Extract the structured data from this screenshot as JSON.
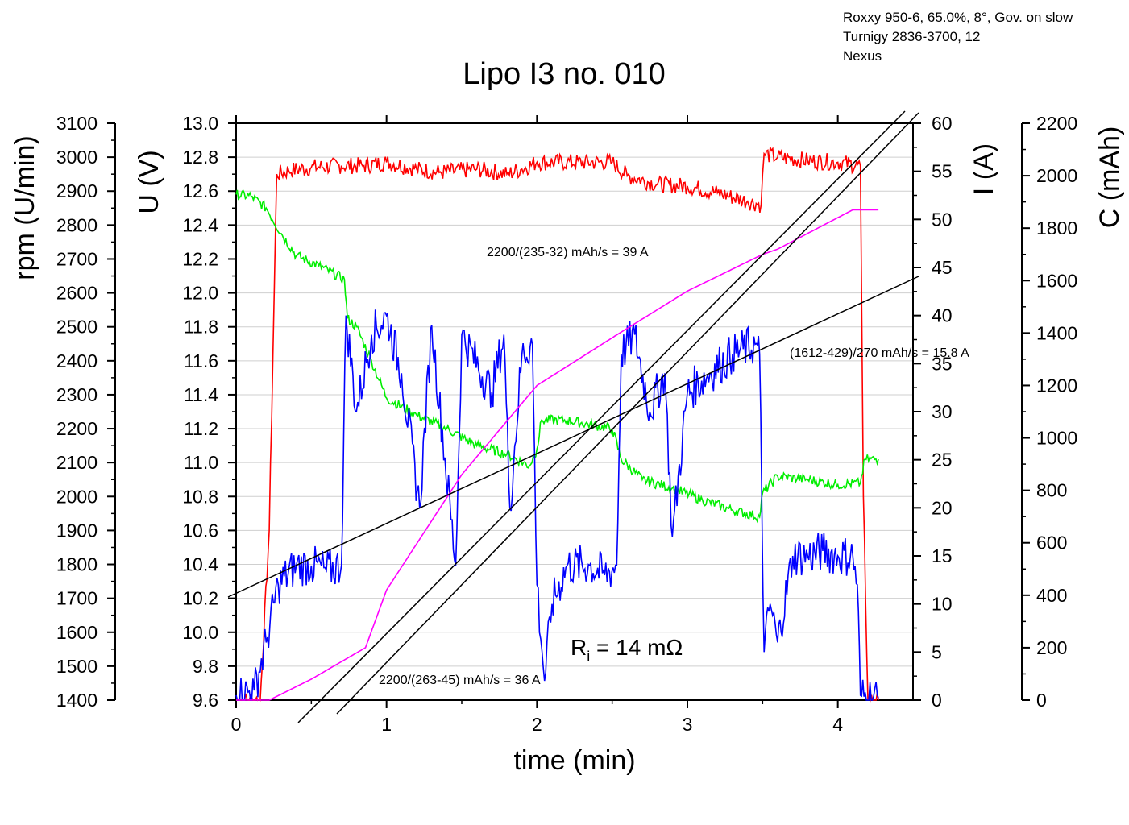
{
  "meta_lines": [
    "Roxxy 950-6, 65.0%, 8°, Gov. on slow",
    "Turnigy 2836-3700, 12",
    "Nexus"
  ],
  "chart_data": {
    "type": "line",
    "title": "Lipo I3 no. 010",
    "xlabel": "time (min)",
    "xlim": [
      0,
      4.5
    ],
    "x_ticks": [
      "0",
      "1",
      "2",
      "3",
      "4"
    ],
    "axes": {
      "rpm": {
        "label": "rpm (U/min)",
        "min": 1400,
        "max": 3100,
        "step": 100,
        "ticks": [
          "1400",
          "1500",
          "1600",
          "1700",
          "1800",
          "1900",
          "2000",
          "2100",
          "2200",
          "2300",
          "2400",
          "2500",
          "2600",
          "2700",
          "2800",
          "2900",
          "3000",
          "3100"
        ]
      },
      "voltage": {
        "label": "U (V)",
        "min": 9.6,
        "max": 13.0,
        "step": 0.2,
        "ticks": [
          "9.6",
          "9.8",
          "10.0",
          "10.2",
          "10.4",
          "10.6",
          "10.8",
          "11.0",
          "11.2",
          "11.4",
          "11.6",
          "11.8",
          "12.0",
          "12.2",
          "12.4",
          "12.6",
          "12.8",
          "13.0"
        ]
      },
      "current": {
        "label": "I (A)",
        "min": 0,
        "max": 60,
        "step": 5,
        "ticks": [
          "0",
          "5",
          "10",
          "15",
          "20",
          "25",
          "30",
          "35",
          "40",
          "45",
          "50",
          "55",
          "60"
        ]
      },
      "capacity": {
        "label": "C (mAh)",
        "min": 0,
        "max": 2200,
        "step": 200,
        "ticks": [
          "0",
          "200",
          "400",
          "600",
          "800",
          "1000",
          "1200",
          "1400",
          "1600",
          "1800",
          "2000",
          "2200"
        ]
      }
    },
    "series": [
      {
        "name": "rpm",
        "axis": "rpm",
        "color": "#ff0000",
        "points": [
          [
            0,
            1400
          ],
          [
            0.16,
            1400
          ],
          [
            0.22,
            1900
          ],
          [
            0.27,
            2950
          ],
          [
            0.35,
            2960
          ],
          [
            0.5,
            2970
          ],
          [
            0.7,
            2975
          ],
          [
            0.85,
            2975
          ],
          [
            1.0,
            2985
          ],
          [
            1.2,
            2965
          ],
          [
            1.35,
            2955
          ],
          [
            1.6,
            2965
          ],
          [
            1.8,
            2950
          ],
          [
            1.9,
            2965
          ],
          [
            2.0,
            2985
          ],
          [
            2.2,
            2985
          ],
          [
            2.5,
            2985
          ],
          [
            2.6,
            2945
          ],
          [
            2.8,
            2920
          ],
          [
            3.0,
            2915
          ],
          [
            3.2,
            2895
          ],
          [
            3.4,
            2870
          ],
          [
            3.49,
            2860
          ],
          [
            3.51,
            3010
          ],
          [
            3.6,
            3000
          ],
          [
            3.8,
            2990
          ],
          [
            4.0,
            2985
          ],
          [
            4.15,
            2975
          ],
          [
            4.17,
            2000
          ],
          [
            4.2,
            1400
          ],
          [
            4.27,
            1400
          ]
        ]
      },
      {
        "name": "voltage",
        "axis": "voltage",
        "color": "#00ee00",
        "points": [
          [
            0,
            12.58
          ],
          [
            0.1,
            12.57
          ],
          [
            0.2,
            12.5
          ],
          [
            0.3,
            12.35
          ],
          [
            0.4,
            12.22
          ],
          [
            0.55,
            12.16
          ],
          [
            0.72,
            12.08
          ],
          [
            0.74,
            11.85
          ],
          [
            0.8,
            11.8
          ],
          [
            0.9,
            11.6
          ],
          [
            1.0,
            11.38
          ],
          [
            1.2,
            11.28
          ],
          [
            1.4,
            11.2
          ],
          [
            1.6,
            11.1
          ],
          [
            1.8,
            11.05
          ],
          [
            1.95,
            10.98
          ],
          [
            2.0,
            11.08
          ],
          [
            2.03,
            11.25
          ],
          [
            2.2,
            11.25
          ],
          [
            2.5,
            11.2
          ],
          [
            2.56,
            11.02
          ],
          [
            2.7,
            10.9
          ],
          [
            2.9,
            10.85
          ],
          [
            3.1,
            10.78
          ],
          [
            3.3,
            10.72
          ],
          [
            3.48,
            10.68
          ],
          [
            3.5,
            10.82
          ],
          [
            3.6,
            10.92
          ],
          [
            3.8,
            10.9
          ],
          [
            4.0,
            10.87
          ],
          [
            4.15,
            10.88
          ],
          [
            4.18,
            11.02
          ],
          [
            4.27,
            11.02
          ]
        ]
      },
      {
        "name": "current",
        "axis": "current",
        "color": "#0000ff",
        "points": [
          [
            0,
            0.5
          ],
          [
            0.12,
            1
          ],
          [
            0.2,
            6
          ],
          [
            0.28,
            12
          ],
          [
            0.4,
            14
          ],
          [
            0.5,
            14
          ],
          [
            0.6,
            13.5
          ],
          [
            0.7,
            14
          ],
          [
            0.73,
            40
          ],
          [
            0.8,
            30
          ],
          [
            0.9,
            38
          ],
          [
            1.0,
            40
          ],
          [
            1.1,
            34
          ],
          [
            1.22,
            20
          ],
          [
            1.3,
            39
          ],
          [
            1.46,
            14
          ],
          [
            1.5,
            38
          ],
          [
            1.7,
            32
          ],
          [
            1.78,
            38
          ],
          [
            1.82,
            20
          ],
          [
            1.9,
            36
          ],
          [
            1.97,
            37
          ],
          [
            2.0,
            12
          ],
          [
            2.05,
            2
          ],
          [
            2.1,
            10
          ],
          [
            2.2,
            14
          ],
          [
            2.35,
            14
          ],
          [
            2.45,
            13
          ],
          [
            2.53,
            14
          ],
          [
            2.56,
            36
          ],
          [
            2.65,
            38
          ],
          [
            2.75,
            30
          ],
          [
            2.85,
            34
          ],
          [
            2.9,
            17
          ],
          [
            3.0,
            32
          ],
          [
            3.15,
            34
          ],
          [
            3.3,
            36
          ],
          [
            3.45,
            37
          ],
          [
            3.48,
            36
          ],
          [
            3.51,
            5
          ],
          [
            3.55,
            10
          ],
          [
            3.6,
            6
          ],
          [
            3.7,
            15
          ],
          [
            3.8,
            15
          ],
          [
            3.9,
            15.5
          ],
          [
            4.0,
            15
          ],
          [
            4.1,
            15
          ],
          [
            4.13,
            12
          ],
          [
            4.15,
            0.5
          ],
          [
            4.27,
            0.2
          ]
        ]
      },
      {
        "name": "capacity",
        "axis": "capacity",
        "color": "#ff00ff",
        "points": [
          [
            0,
            0
          ],
          [
            0.22,
            0
          ],
          [
            0.5,
            80
          ],
          [
            0.86,
            200
          ],
          [
            1.0,
            420
          ],
          [
            1.5,
            860
          ],
          [
            2.0,
            1200
          ],
          [
            2.55,
            1400
          ],
          [
            3.0,
            1560
          ],
          [
            3.5,
            1700
          ],
          [
            3.6,
            1720
          ],
          [
            4.1,
            1870
          ],
          [
            4.27,
            1870
          ]
        ]
      }
    ],
    "fit_lines": [
      {
        "name": "fit-39A",
        "x1": 0.4,
        "x2": 4.45
      },
      {
        "name": "fit-36A",
        "x1": 0.68,
        "x2": 4.45
      },
      {
        "name": "fit-15.8A",
        "x1": 0,
        "x2": 4.5
      }
    ],
    "annotations": {
      "fit_39": "2200/(235-32) mAh/s = 39 A",
      "fit_15": "(1612-429)/270 mAh/s = 15.8 A",
      "fit_36": "2200/(263-45) mAh/s = 36 A",
      "ri_main": "R",
      "ri_sub": "i",
      "ri_value": " = 14 mΩ"
    }
  }
}
